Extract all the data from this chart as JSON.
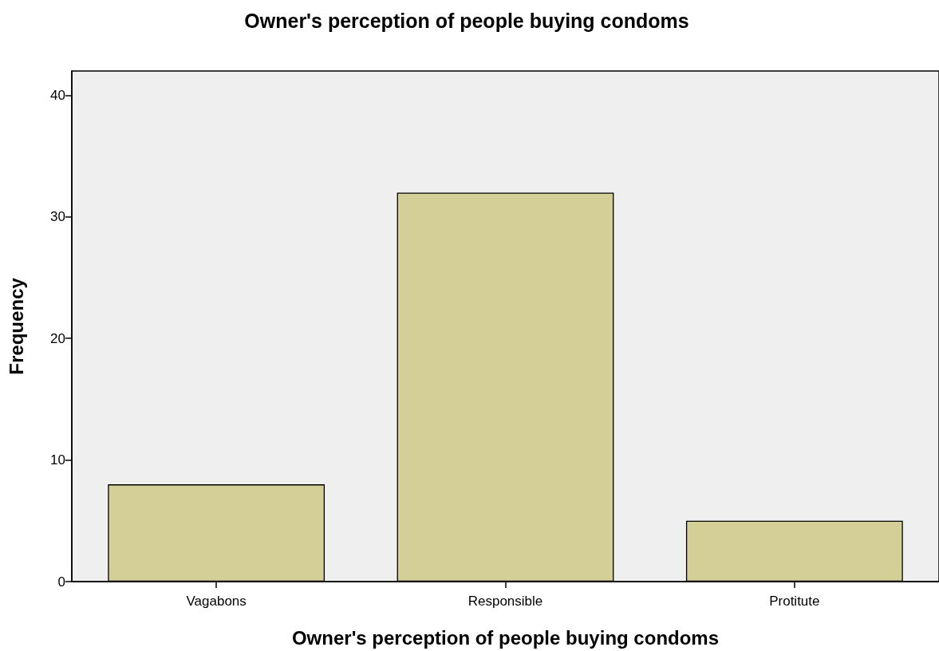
{
  "chart_data": {
    "type": "bar",
    "title": "Owner's perception of people buying condoms",
    "xlabel": "Owner's perception of people buying condoms",
    "ylabel": "Frequency",
    "categories": [
      "Vagabons",
      "Responsible",
      "Protitute"
    ],
    "values": [
      8,
      32,
      5
    ],
    "color": "#d3cf97",
    "ylim": [
      0,
      42
    ],
    "yticks": [
      0,
      10,
      20,
      30,
      40
    ],
    "grid": false
  }
}
